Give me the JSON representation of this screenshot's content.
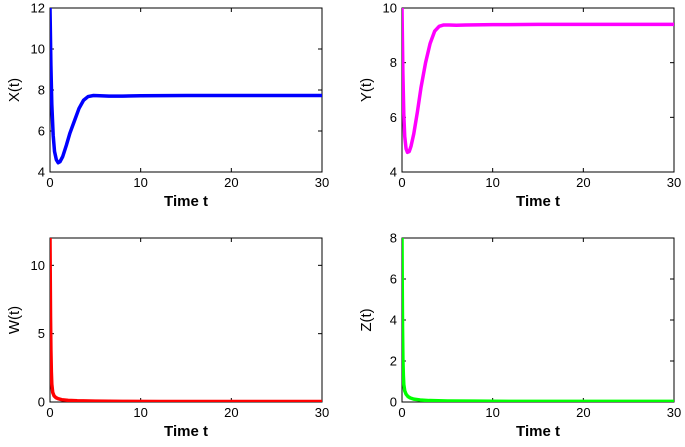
{
  "chart_data": [
    {
      "type": "line",
      "xlabel": "Time t",
      "ylabel": "X(t)",
      "xlim": [
        0,
        30
      ],
      "ylim": [
        4,
        12
      ],
      "xticks": [
        "0",
        "10",
        "20",
        "30"
      ],
      "yticks": [
        "4",
        "6",
        "8",
        "10",
        "12"
      ],
      "grid": false,
      "series": [
        {
          "color": "#0000ff",
          "x": [
            0,
            0.1,
            0.2,
            0.35,
            0.5,
            0.7,
            0.9,
            1.1,
            1.4,
            1.8,
            2.2,
            2.7,
            3.2,
            3.7,
            4.2,
            4.8,
            5.5,
            6.5,
            8,
            10,
            15,
            20,
            25,
            30
          ],
          "y": [
            12,
            9.2,
            7.3,
            5.8,
            5.0,
            4.6,
            4.45,
            4.5,
            4.75,
            5.3,
            5.9,
            6.5,
            7.1,
            7.5,
            7.68,
            7.73,
            7.72,
            7.7,
            7.7,
            7.72,
            7.73,
            7.73,
            7.73,
            7.73
          ]
        }
      ]
    },
    {
      "type": "line",
      "xlabel": "Time t",
      "ylabel": "Y(t)",
      "xlim": [
        0,
        30
      ],
      "ylim": [
        4,
        10
      ],
      "xticks": [
        "0",
        "10",
        "20",
        "30"
      ],
      "yticks": [
        "4",
        "6",
        "8",
        "10"
      ],
      "grid": false,
      "series": [
        {
          "color": "#ff00ff",
          "x": [
            0,
            0.05,
            0.1,
            0.2,
            0.3,
            0.45,
            0.6,
            0.8,
            1.0,
            1.3,
            1.7,
            2.1,
            2.6,
            3.1,
            3.6,
            4.1,
            4.6,
            5.2,
            6,
            7,
            10,
            15,
            20,
            25,
            30
          ],
          "y": [
            10,
            8.8,
            7.6,
            6.1,
            5.3,
            4.85,
            4.72,
            4.75,
            4.95,
            5.4,
            6.2,
            7.1,
            8.0,
            8.7,
            9.15,
            9.33,
            9.38,
            9.38,
            9.37,
            9.38,
            9.39,
            9.4,
            9.4,
            9.4,
            9.4
          ]
        }
      ]
    },
    {
      "type": "line",
      "xlabel": "Time t",
      "ylabel": "W(t)",
      "xlim": [
        0,
        30
      ],
      "ylim": [
        0,
        12
      ],
      "xticks": [
        "0",
        "10",
        "20",
        "30"
      ],
      "yticks": [
        "0",
        "5",
        "10"
      ],
      "grid": false,
      "series": [
        {
          "color": "#ff0000",
          "x": [
            0,
            0.03,
            0.06,
            0.1,
            0.15,
            0.2,
            0.3,
            0.45,
            0.65,
            0.9,
            1.3,
            2,
            3,
            5,
            8,
            12,
            20,
            30
          ],
          "y": [
            12,
            9.0,
            6.2,
            3.8,
            2.2,
            1.3,
            0.7,
            0.45,
            0.32,
            0.24,
            0.17,
            0.12,
            0.09,
            0.06,
            0.05,
            0.04,
            0.04,
            0.04
          ]
        }
      ]
    },
    {
      "type": "line",
      "xlabel": "Time t",
      "ylabel": "Z(t)",
      "xlim": [
        0,
        30
      ],
      "ylim": [
        0,
        8
      ],
      "xticks": [
        "0",
        "10",
        "20",
        "30"
      ],
      "yticks": [
        "0",
        "2",
        "4",
        "6",
        "8"
      ],
      "grid": false,
      "series": [
        {
          "color": "#00ff00",
          "x": [
            0,
            0.03,
            0.06,
            0.1,
            0.15,
            0.2,
            0.3,
            0.45,
            0.65,
            0.9,
            1.3,
            2,
            3,
            5,
            8,
            12,
            20,
            30
          ],
          "y": [
            8,
            5.5,
            3.6,
            2.1,
            1.3,
            0.85,
            0.55,
            0.38,
            0.27,
            0.2,
            0.14,
            0.1,
            0.07,
            0.05,
            0.04,
            0.03,
            0.03,
            0.03
          ]
        }
      ]
    }
  ]
}
